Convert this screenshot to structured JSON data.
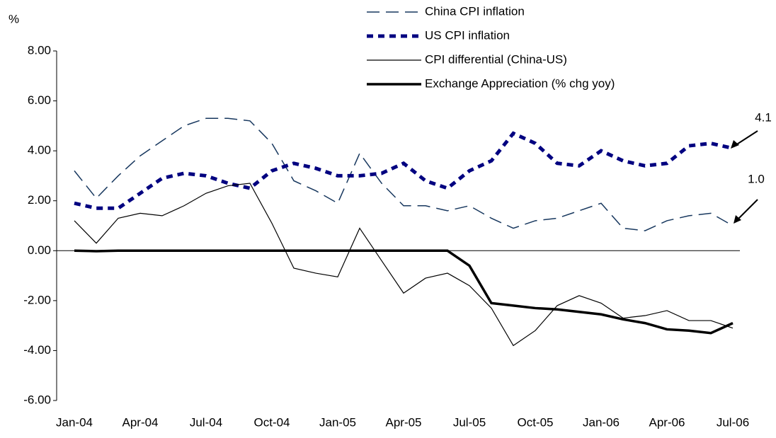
{
  "chart_data": {
    "type": "line",
    "y_label": "%",
    "categories": [
      "Jan-04",
      null,
      null,
      "Apr-04",
      null,
      null,
      "Jul-04",
      null,
      null,
      "Oct-04",
      null,
      null,
      "Jan-05",
      null,
      null,
      "Apr-05",
      null,
      null,
      "Jul-05",
      null,
      null,
      "Oct-05",
      null,
      null,
      "Jan-06",
      null,
      null,
      "Apr-06",
      null,
      null,
      "Jul-06"
    ],
    "series": [
      {
        "name": "China CPI inflation",
        "color": "#17375e",
        "style": "dashed",
        "values": [
          3.2,
          2.1,
          3.0,
          3.8,
          4.4,
          5.0,
          5.3,
          5.3,
          5.2,
          4.3,
          2.8,
          2.4,
          1.9,
          3.9,
          2.7,
          1.8,
          1.8,
          1.6,
          1.8,
          1.3,
          0.9,
          1.2,
          1.3,
          1.6,
          1.9,
          0.9,
          0.8,
          1.2,
          1.4,
          1.5,
          1.0
        ]
      },
      {
        "name": "US CPI inflation",
        "color": "#000080",
        "style": "dotted",
        "values": [
          1.9,
          1.7,
          1.7,
          2.3,
          2.9,
          3.1,
          3.0,
          2.7,
          2.5,
          3.2,
          3.5,
          3.3,
          3.0,
          3.0,
          3.1,
          3.5,
          2.8,
          2.5,
          3.2,
          3.6,
          4.7,
          4.3,
          3.5,
          3.4,
          4.0,
          3.6,
          3.4,
          3.5,
          4.2,
          4.3,
          4.1
        ]
      },
      {
        "name": "CPI differential (China-US)",
        "color": "#000000",
        "style": "thin",
        "values": [
          1.2,
          0.3,
          1.3,
          1.5,
          1.4,
          1.8,
          2.3,
          2.6,
          2.7,
          1.1,
          -0.7,
          -0.9,
          -1.05,
          0.9,
          -0.4,
          -1.7,
          -1.1,
          -0.9,
          -1.4,
          -2.3,
          -3.8,
          -3.2,
          -2.2,
          -1.8,
          -2.1,
          -2.7,
          -2.6,
          -2.4,
          -2.8,
          -2.8,
          -3.1
        ]
      },
      {
        "name": "Exchange Appreciation (% chg yoy)",
        "color": "#000000",
        "style": "thick",
        "values": [
          0,
          -0.02,
          0,
          0,
          0,
          0,
          0,
          0,
          0,
          0,
          0,
          0,
          0,
          0,
          0,
          0,
          0,
          0,
          -0.6,
          -2.1,
          -2.2,
          -2.3,
          -2.35,
          -2.45,
          -2.55,
          -2.75,
          -2.9,
          -3.15,
          -3.2,
          -3.3,
          -2.9
        ]
      }
    ],
    "ylim": [
      -6,
      8
    ],
    "yticks": [
      {
        "value": -6,
        "label": "-6.00"
      },
      {
        "value": -4,
        "label": "-4.00"
      },
      {
        "value": -2,
        "label": "-2.00"
      },
      {
        "value": 0,
        "label": "0.00"
      },
      {
        "value": 2,
        "label": "2.00"
      },
      {
        "value": 4,
        "label": "4.00"
      },
      {
        "value": 6,
        "label": "6.00"
      },
      {
        "value": 8,
        "label": "8.00"
      }
    ],
    "annotations": [
      "4.1",
      "1.0"
    ],
    "legend": "top"
  }
}
